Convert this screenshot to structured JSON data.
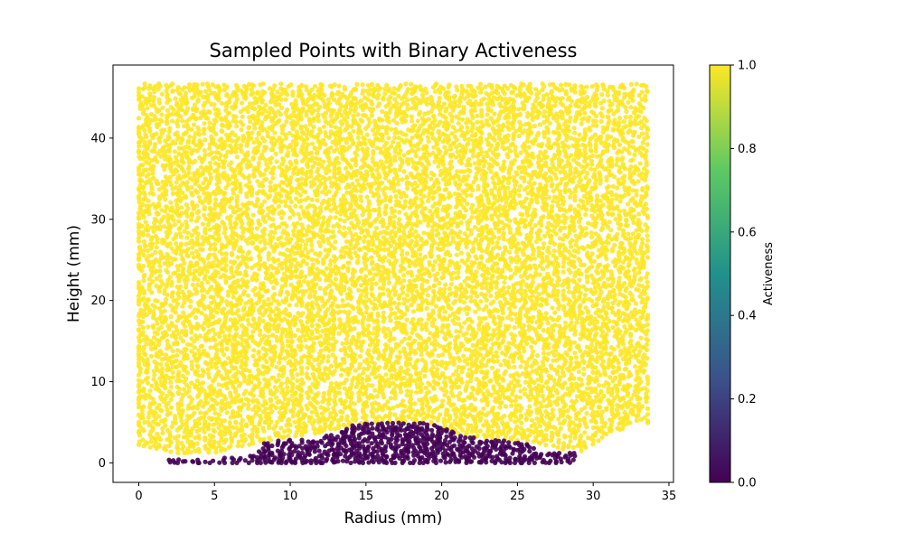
{
  "chart_data": {
    "type": "scatter",
    "title": "Sampled Points with Binary Activeness",
    "xlabel": "Radius (mm)",
    "ylabel": "Height (mm)",
    "xlim": [
      -1.7,
      35.3
    ],
    "ylim": [
      -2.4,
      49.0
    ],
    "xticks": [
      0,
      5,
      10,
      15,
      20,
      25,
      30,
      35
    ],
    "yticks": [
      0,
      10,
      20,
      30,
      40
    ],
    "grid": false,
    "colorbar": {
      "label": "Activeness",
      "range": [
        0.0,
        1.0
      ],
      "ticks": [
        0.0,
        0.2,
        0.4,
        0.6,
        0.8,
        1.0
      ],
      "colormap": "viridis",
      "colors": [
        "#440154",
        "#3b528b",
        "#21918c",
        "#5ec962",
        "#fde725"
      ]
    },
    "series": [
      {
        "value": 1.0,
        "color": "#fde725",
        "region": {
          "x_range": [
            0.0,
            33.6
          ],
          "y_top": 46.7,
          "bottom_boundary": [
            [
              0.0,
              2.2
            ],
            [
              1.5,
              1.6
            ],
            [
              2.5,
              1.2
            ],
            [
              5.0,
              1.3
            ],
            [
              8.0,
              2.6
            ],
            [
              12.0,
              3.8
            ],
            [
              15.0,
              5.0
            ],
            [
              17.0,
              5.2
            ],
            [
              19.0,
              5.0
            ],
            [
              22.0,
              3.2
            ],
            [
              26.0,
              2.6
            ],
            [
              29.0,
              1.3
            ],
            [
              31.0,
              3.6
            ],
            [
              33.6,
              5.0
            ]
          ]
        }
      },
      {
        "value": 0.0,
        "color": "#440154",
        "region": {
          "x_range": [
            2.0,
            28.8
          ],
          "y_bottom": 0.0,
          "top_boundary": [
            [
              2.0,
              0.4
            ],
            [
              5.0,
              0.5
            ],
            [
              7.9,
              1.0
            ],
            [
              8.1,
              2.6
            ],
            [
              12.0,
              3.0
            ],
            [
              14.0,
              4.6
            ],
            [
              15.0,
              5.0
            ],
            [
              17.0,
              5.1
            ],
            [
              19.5,
              4.9
            ],
            [
              21.5,
              3.3
            ],
            [
              23.0,
              2.8
            ],
            [
              25.9,
              2.6
            ],
            [
              26.1,
              1.2
            ],
            [
              28.8,
              1.2
            ]
          ]
        }
      }
    ]
  }
}
